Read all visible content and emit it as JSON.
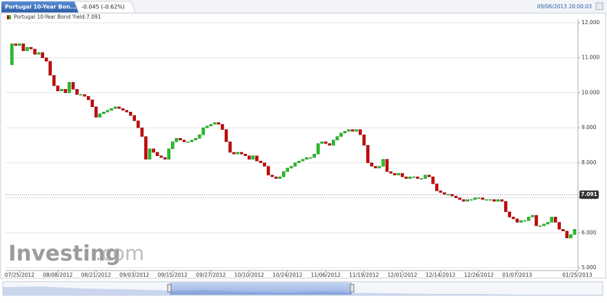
{
  "header": {
    "tab": "Portugal 10-Year Bon...",
    "change": "-0.045 (-0.62%)",
    "timestamp": "09/06/2013 20:00:03"
  },
  "watermark": [
    "Investing",
    ".com"
  ],
  "chart_data": {
    "type": "candlestick",
    "series": [
      {
        "name": "Portugal 10-Year Bond Yield:7.091",
        "open": [
          10.8,
          11.4,
          11.35,
          11.4,
          11.2,
          11.3,
          11.25,
          11.1,
          11.15,
          11.0,
          10.9,
          10.5,
          10.2,
          10.05,
          10.1,
          10.0,
          10.3,
          10.1,
          9.95,
          9.95,
          9.9,
          9.8,
          9.6,
          9.3,
          9.4,
          9.45,
          9.5,
          9.55,
          9.6,
          9.55,
          9.5,
          9.45,
          9.35,
          9.2,
          9.0,
          8.75,
          8.1,
          8.4,
          8.3,
          8.2,
          8.15,
          8.1,
          8.4,
          8.6,
          8.7,
          8.65,
          8.6,
          8.6,
          8.65,
          8.7,
          8.8,
          9.0,
          9.05,
          9.1,
          9.15,
          9.1,
          8.95,
          8.6,
          8.3,
          8.25,
          8.3,
          8.25,
          8.2,
          8.1,
          8.2,
          8.05,
          8.0,
          7.9,
          7.65,
          7.6,
          7.55,
          7.6,
          7.75,
          7.85,
          7.9,
          8.0,
          8.05,
          8.1,
          8.15,
          8.15,
          8.25,
          8.55,
          8.6,
          8.55,
          8.5,
          8.65,
          8.75,
          8.85,
          8.9,
          8.95,
          8.9,
          8.95,
          8.8,
          8.5,
          8.0,
          7.9,
          7.85,
          7.9,
          8.1,
          7.75,
          7.7,
          7.65,
          7.7,
          7.6,
          7.55,
          7.6,
          7.6,
          7.55,
          7.55,
          7.65,
          7.6,
          7.4,
          7.2,
          7.15,
          7.1,
          7.1,
          7.05,
          7.0,
          6.95,
          6.9,
          6.95,
          6.95,
          7.0,
          7.0,
          6.95,
          6.95,
          6.95,
          6.9,
          6.95,
          6.9,
          6.6,
          6.45,
          6.4,
          6.3,
          6.35,
          6.35,
          6.45,
          6.5,
          6.2,
          6.2,
          6.25,
          6.3,
          6.45,
          6.3,
          6.1,
          6.05,
          5.85,
          5.95
        ],
        "close": [
          11.4,
          11.35,
          11.4,
          11.2,
          11.3,
          11.25,
          11.1,
          11.15,
          11.0,
          10.9,
          10.5,
          10.2,
          10.05,
          10.1,
          10.0,
          10.3,
          10.1,
          9.95,
          9.95,
          9.9,
          9.8,
          9.6,
          9.3,
          9.4,
          9.45,
          9.5,
          9.55,
          9.6,
          9.55,
          9.5,
          9.45,
          9.35,
          9.2,
          9.0,
          8.75,
          8.1,
          8.4,
          8.3,
          8.2,
          8.15,
          8.1,
          8.4,
          8.6,
          8.7,
          8.65,
          8.6,
          8.6,
          8.65,
          8.7,
          8.8,
          9.0,
          9.05,
          9.1,
          9.15,
          9.1,
          8.95,
          8.6,
          8.3,
          8.25,
          8.3,
          8.25,
          8.2,
          8.1,
          8.2,
          8.05,
          8.0,
          7.9,
          7.65,
          7.6,
          7.55,
          7.6,
          7.75,
          7.85,
          7.9,
          8.0,
          8.05,
          8.1,
          8.15,
          8.15,
          8.25,
          8.55,
          8.6,
          8.55,
          8.5,
          8.65,
          8.75,
          8.85,
          8.9,
          8.95,
          8.9,
          8.95,
          8.8,
          8.5,
          8.0,
          7.9,
          7.85,
          7.9,
          8.1,
          7.75,
          7.7,
          7.65,
          7.7,
          7.6,
          7.55,
          7.6,
          7.6,
          7.55,
          7.55,
          7.65,
          7.6,
          7.4,
          7.2,
          7.15,
          7.1,
          7.1,
          7.05,
          7.0,
          6.95,
          6.9,
          6.95,
          6.95,
          7.0,
          7.0,
          6.95,
          6.95,
          6.95,
          6.9,
          6.95,
          6.9,
          6.6,
          6.45,
          6.4,
          6.3,
          6.35,
          6.35,
          6.45,
          6.5,
          6.2,
          6.2,
          6.25,
          6.3,
          6.45,
          6.3,
          6.1,
          6.05,
          5.85,
          5.95,
          6.1
        ]
      }
    ],
    "up_color": "#22c322",
    "down_color": "#cc0000",
    "ylim": [
      5,
      12
    ],
    "yticks": [
      {
        "value": 12,
        "label": "12.000"
      },
      {
        "value": 11,
        "label": "11.000"
      },
      {
        "value": 10,
        "label": "10.000"
      },
      {
        "value": 9,
        "label": "9.000"
      },
      {
        "value": 8,
        "label": "8.000"
      },
      {
        "value": 7,
        "label": "7.000"
      },
      {
        "value": 6,
        "label": "6.000"
      },
      {
        "value": 5,
        "label": "5.000"
      }
    ],
    "xlim": [
      -1.3,
      147.9
    ],
    "xticks": [
      {
        "value": 2,
        "label": "07/25/2012"
      },
      {
        "value": 12,
        "label": "08/08/2012"
      },
      {
        "value": 22,
        "label": "08/21/2012"
      },
      {
        "value": 32,
        "label": "09/03/2012"
      },
      {
        "value": 42,
        "label": "09/15/2012"
      },
      {
        "value": 52,
        "label": "09/27/2012"
      },
      {
        "value": 62,
        "label": "10/10/2012"
      },
      {
        "value": 72,
        "label": "10/24/2012"
      },
      {
        "value": 82,
        "label": "11/06/2012"
      },
      {
        "value": 92,
        "label": "11/19/2012"
      },
      {
        "value": 102,
        "label": "12/01/2012"
      },
      {
        "value": 112,
        "label": "12/14/2012"
      },
      {
        "value": 122,
        "label": "12/26/2012"
      },
      {
        "value": 132,
        "label": "01/07/2013"
      },
      {
        "value": 147.7,
        "label": "01/25/2013"
      }
    ],
    "last_value": {
      "value": 7.091,
      "label": "7.091"
    },
    "grid": true
  }
}
